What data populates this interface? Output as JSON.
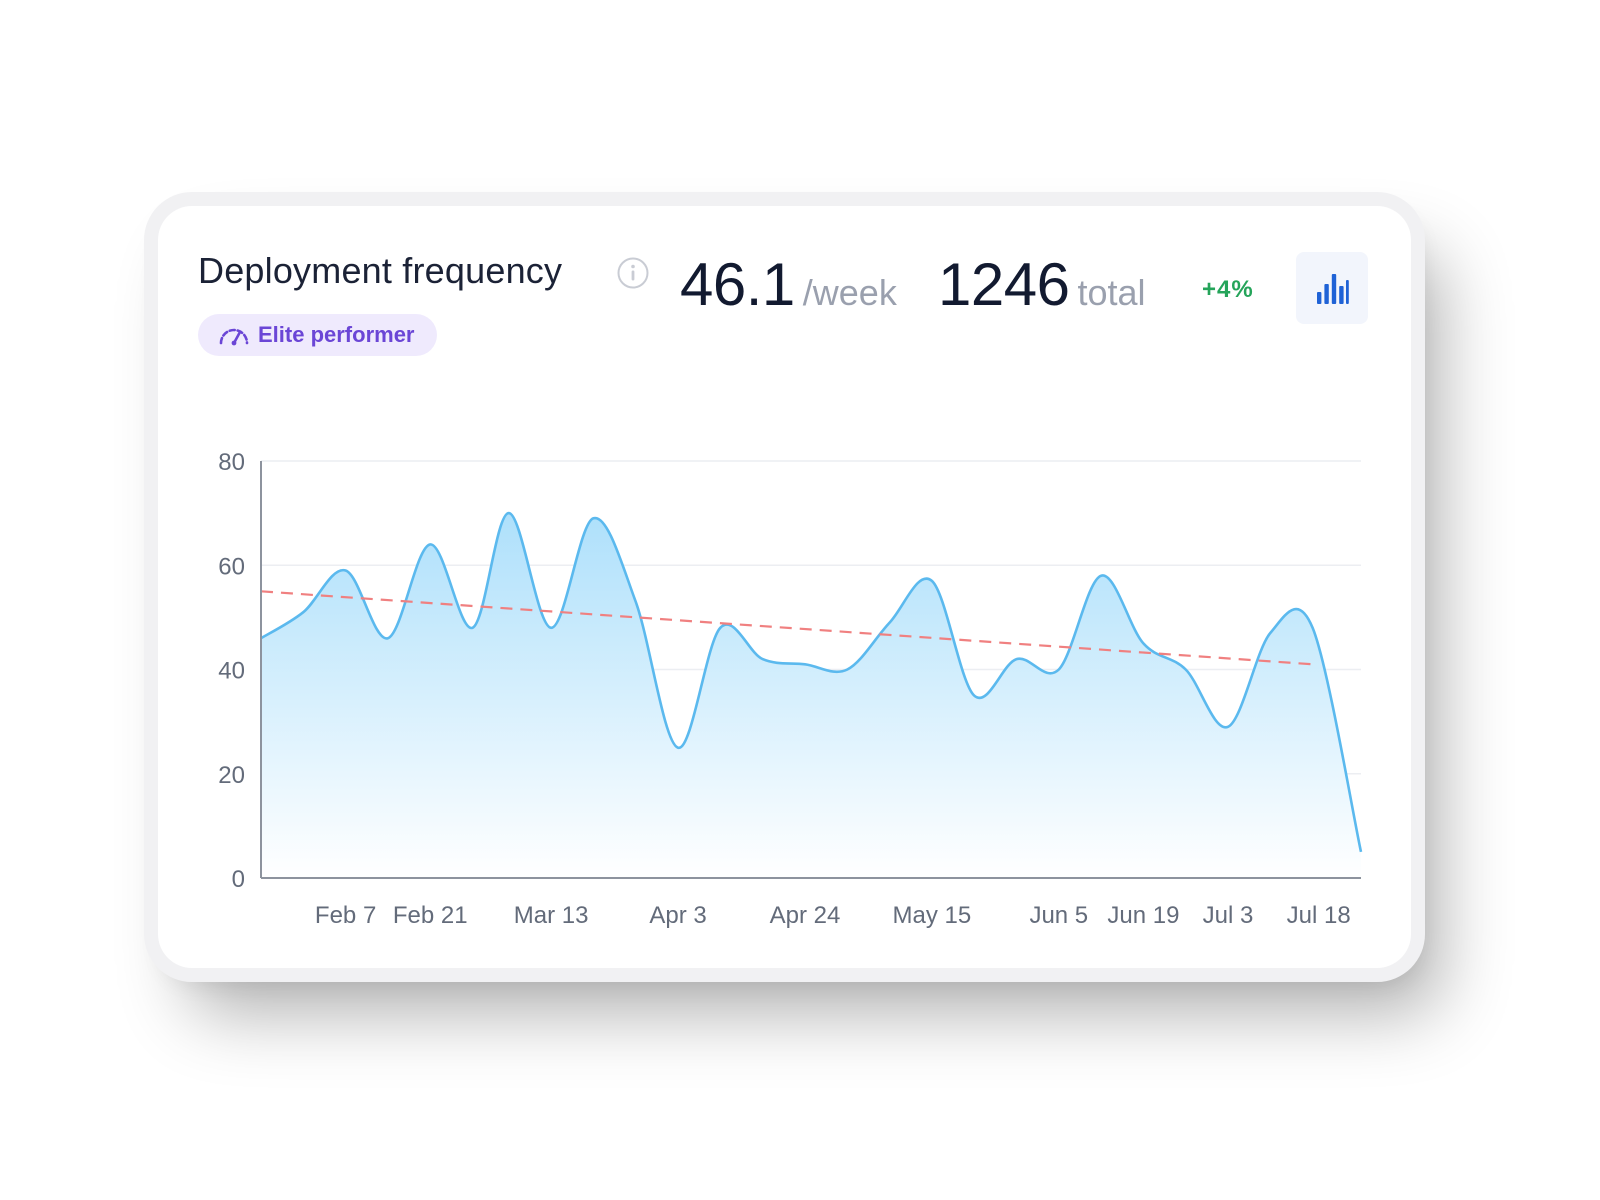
{
  "header": {
    "title": "Deployment frequency",
    "badge": "Elite performer",
    "rate_value": "46.1",
    "rate_unit": "/week",
    "total_value": "1246",
    "total_unit": "total",
    "change": "+4%"
  },
  "colors": {
    "line": "#5bb9ee",
    "area_top": "#aee0fb",
    "trend": "#f08080",
    "badge_bg": "#efeafd",
    "badge_text": "#6b46d6",
    "change": "#25a45a",
    "chart_button_icon": "#1f62d6"
  },
  "icons": {
    "info": "info-icon",
    "badge": "speedometer-icon",
    "chart_toggle": "bar-chart-icon"
  },
  "chart_data": {
    "type": "area",
    "title": "",
    "xlabel": "",
    "ylabel": "",
    "ylim": [
      0,
      80
    ],
    "yticks": [
      0,
      20,
      40,
      60,
      80
    ],
    "grid": true,
    "x_start": "Jan 24",
    "x_end": "Jul 25",
    "xticks": [
      {
        "label": "Feb 7",
        "date": "Feb 7"
      },
      {
        "label": "Feb 21",
        "date": "Feb 21"
      },
      {
        "label": "Mar 13",
        "date": "Mar 13"
      },
      {
        "label": "Apr 3",
        "date": "Apr 3"
      },
      {
        "label": "Apr 24",
        "date": "Apr 24"
      },
      {
        "label": "May 15",
        "date": "May 15"
      },
      {
        "label": "Jun 5",
        "date": "Jun 5"
      },
      {
        "label": "Jun 19",
        "date": "Jun 19"
      },
      {
        "label": "Jul 3",
        "date": "Jul 3"
      },
      {
        "label": "Jul 18",
        "date": "Jul 18"
      }
    ],
    "series": [
      {
        "points": [
          {
            "x": "Jan 24",
            "y": 46
          },
          {
            "x": "Jan 31",
            "y": 51
          },
          {
            "x": "Feb 7",
            "y": 59
          },
          {
            "x": "Feb 14",
            "y": 46
          },
          {
            "x": "Feb 21",
            "y": 64
          },
          {
            "x": "Feb 28",
            "y": 48
          },
          {
            "x": "Mar 6",
            "y": 70
          },
          {
            "x": "Mar 13",
            "y": 48
          },
          {
            "x": "Mar 20",
            "y": 69
          },
          {
            "x": "Mar 27",
            "y": 53
          },
          {
            "x": "Apr 3",
            "y": 25
          },
          {
            "x": "Apr 10",
            "y": 48
          },
          {
            "x": "Apr 17",
            "y": 42
          },
          {
            "x": "Apr 24",
            "y": 41
          },
          {
            "x": "May 1",
            "y": 40
          },
          {
            "x": "May 8",
            "y": 49
          },
          {
            "x": "May 15",
            "y": 57
          },
          {
            "x": "May 22",
            "y": 35
          },
          {
            "x": "May 29",
            "y": 42
          },
          {
            "x": "Jun 5",
            "y": 40
          },
          {
            "x": "Jun 12",
            "y": 58
          },
          {
            "x": "Jun 19",
            "y": 45
          },
          {
            "x": "Jun 26",
            "y": 40
          },
          {
            "x": "Jul 3",
            "y": 29
          },
          {
            "x": "Jul 10",
            "y": 47
          },
          {
            "x": "Jul 17",
            "y": 48
          },
          {
            "x": "Jul 25",
            "y": 5
          }
        ]
      }
    ],
    "trendline": {
      "style": "dashed",
      "start": {
        "x": "Jan 24",
        "y": 55
      },
      "end": {
        "x": "Jul 17",
        "y": 41
      }
    }
  }
}
